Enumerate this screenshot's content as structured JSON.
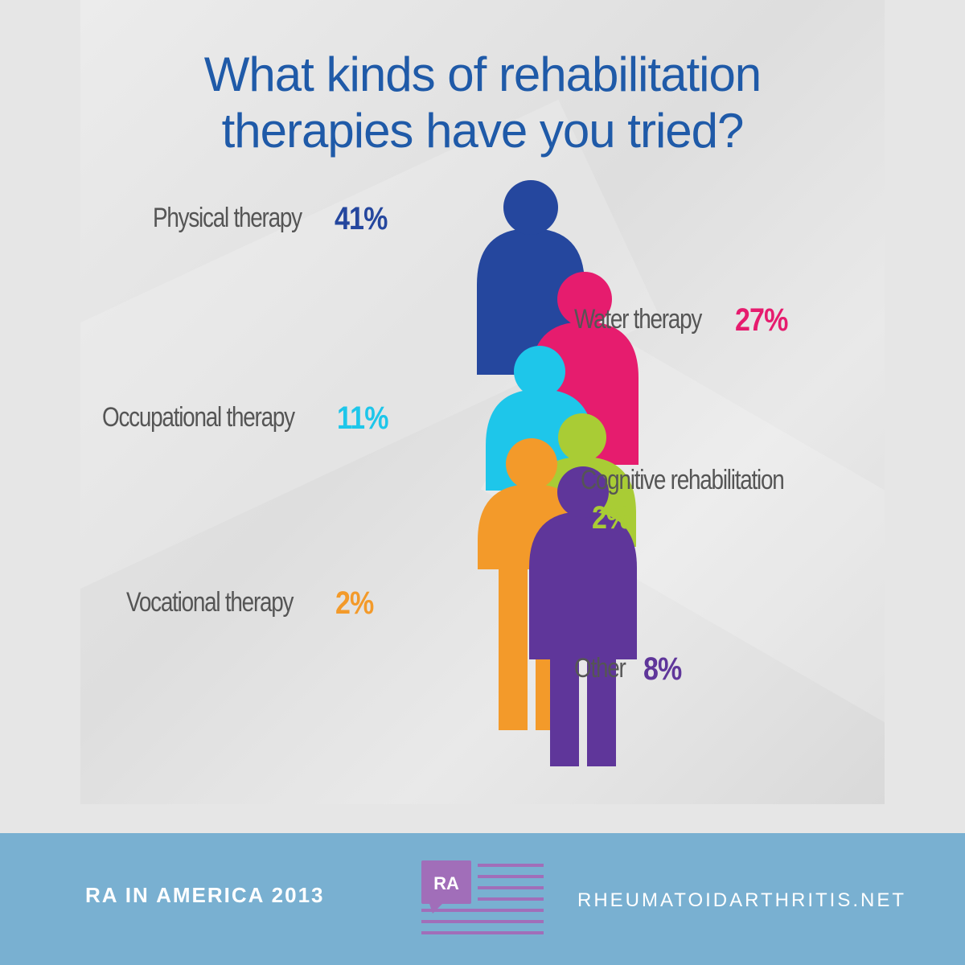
{
  "title": {
    "line1": "What kinds of rehabilitation",
    "line2": "therapies have you tried?"
  },
  "chart_data": {
    "type": "bar",
    "title": "What kinds of rehabilitation therapies have you tried?",
    "categories": [
      "Physical therapy",
      "Water therapy",
      "Occupational therapy",
      "Cognitive rehabilitation",
      "Vocational therapy",
      "Other"
    ],
    "values": [
      41,
      27,
      11,
      2,
      2,
      8
    ],
    "value_labels": [
      "41%",
      "27%",
      "11%",
      "2%",
      "2%",
      "8%"
    ],
    "unit": "%",
    "colors": [
      "#25479e",
      "#e61c6e",
      "#1ec6ea",
      "#a9cc35",
      "#f39a2a",
      "#5f369a"
    ]
  },
  "footer": {
    "left_text": "RA IN AMERICA 2013",
    "right_text": "RHEUMATOIDARTHRITIS.NET",
    "logo_text": "RA",
    "logo_color": "#a16eb9"
  }
}
